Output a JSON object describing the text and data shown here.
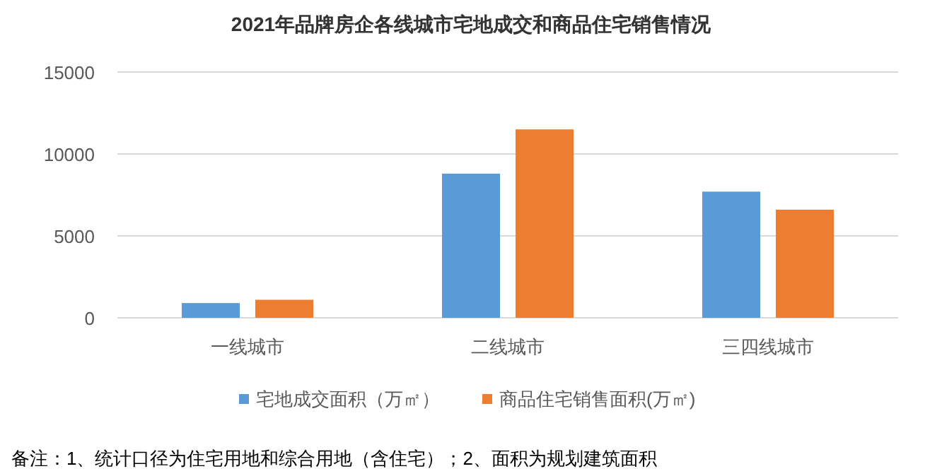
{
  "chart_data": {
    "type": "bar",
    "title": "2021年品牌房企各线城市宅地成交和商品住宅销售情况",
    "categories": [
      "一线城市",
      "二线城市",
      "三四线城市"
    ],
    "series": [
      {
        "name": "宅地成交面积（万㎡）",
        "color": "#5b9bd5",
        "values": [
          900,
          8800,
          7700
        ]
      },
      {
        "name": "商品住宅销售面积(万㎡)",
        "color": "#ed7d31",
        "values": [
          1100,
          11500,
          6600
        ]
      }
    ],
    "ylim": [
      0,
      15000
    ],
    "yticks": [
      0,
      5000,
      10000,
      15000
    ],
    "grid": "y",
    "legend": "bottom",
    "annotations": [
      "备注：1、统计口径为住宅用地和综合用地（含住宅）；2、面积为规划建筑面积"
    ]
  }
}
